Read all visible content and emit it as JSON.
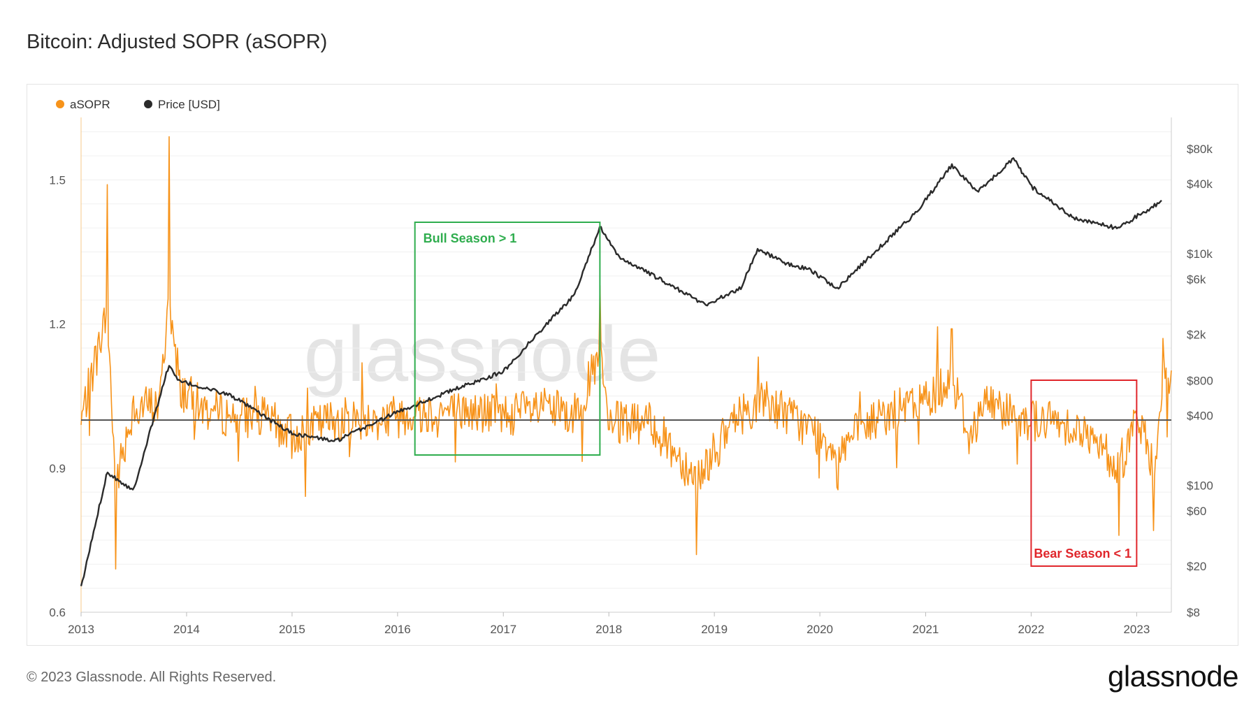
{
  "title": "Bitcoin: Adjusted SOPR (aSOPR)",
  "footer": "© 2023 Glassnode. All Rights Reserved.",
  "brand": "glassnode",
  "watermark": "glassnode",
  "colors": {
    "asopr": "#F7931A",
    "price": "#2b2b2b",
    "bull": "#2fad4e",
    "bear": "#e0262b",
    "baseline": "#555555"
  },
  "chart_data": {
    "type": "line",
    "title": "Bitcoin: Adjusted SOPR (aSOPR)",
    "legend": {
      "placement": "top-left",
      "entries": [
        "aSOPR",
        "Price [USD]"
      ]
    },
    "x_ticks": [
      "2013",
      "2014",
      "2015",
      "2016",
      "2017",
      "2018",
      "2019",
      "2020",
      "2021",
      "2022",
      "2023"
    ],
    "x_range": [
      "2013-01-01",
      "2023-05-01"
    ],
    "y_left": {
      "ticks": [
        "0.6",
        "0.9",
        "1.2",
        "1.5"
      ],
      "ylim": [
        0.6,
        1.63
      ]
    },
    "y_right": {
      "scale": "log",
      "ticks": [
        "$8",
        "$20",
        "$60",
        "$100",
        "$400",
        "$800",
        "$2k",
        "$6k",
        "$10k",
        "$40k",
        "$80k"
      ],
      "tick_values": [
        8,
        20,
        60,
        100,
        400,
        800,
        2000,
        6000,
        10000,
        40000,
        80000
      ]
    },
    "baseline": 1,
    "series": [
      {
        "name": "aSOPR",
        "axis": "left",
        "x": [
          "2013-01",
          "2013-04",
          "2013-05",
          "2013-07",
          "2013-10",
          "2013-11",
          "2013-12",
          "2014-03",
          "2014-06",
          "2014-10",
          "2015-01",
          "2015-06",
          "2015-10",
          "2016-01",
          "2016-06",
          "2017-01",
          "2017-06",
          "2017-09",
          "2017-12",
          "2018-01",
          "2018-06",
          "2018-11",
          "2019-04",
          "2019-07",
          "2019-10",
          "2020-03",
          "2020-08",
          "2021-01",
          "2021-04",
          "2021-06",
          "2021-08",
          "2021-11",
          "2022-01",
          "2022-06",
          "2022-11",
          "2023-01",
          "2023-03",
          "2023-04"
        ],
        "values": [
          0.99,
          1.49,
          0.69,
          1.05,
          1.06,
          1.59,
          1.15,
          1.04,
          1.01,
          1.0,
          0.92,
          1.0,
          0.99,
          1.02,
          1.03,
          1.02,
          1.04,
          1.01,
          1.28,
          0.98,
          0.97,
          0.72,
          1.02,
          1.08,
          1.0,
          0.86,
          1.01,
          1.08,
          1.19,
          0.93,
          1.07,
          1.03,
          0.99,
          0.97,
          0.76,
          1.01,
          0.77,
          1.17
        ]
      },
      {
        "name": "Price [USD]",
        "axis": "right",
        "x": [
          "2013-01",
          "2013-04",
          "2013-07",
          "2013-11",
          "2013-12",
          "2014-06",
          "2015-01",
          "2015-06",
          "2016-01",
          "2016-07",
          "2017-01",
          "2017-06",
          "2017-09",
          "2017-12",
          "2018-02",
          "2018-06",
          "2018-11",
          "2018-12",
          "2019-04",
          "2019-06",
          "2019-09",
          "2019-12",
          "2020-03",
          "2020-08",
          "2020-12",
          "2021-04",
          "2021-07",
          "2021-11",
          "2022-01",
          "2022-06",
          "2022-11",
          "2023-01",
          "2023-04"
        ],
        "values": [
          13,
          130,
          90,
          1100,
          800,
          600,
          280,
          240,
          430,
          650,
          960,
          2500,
          4300,
          17000,
          9500,
          6500,
          4000,
          3600,
          5000,
          11000,
          8300,
          7200,
          5000,
          11700,
          23000,
          58000,
          34000,
          66000,
          38000,
          20000,
          16500,
          21000,
          28500
        ]
      }
    ],
    "annotations": [
      {
        "label": "Bull Season > 1",
        "from": "2016-03",
        "to": "2017-12"
      },
      {
        "label": "Bear Season < 1",
        "from": "2022-01",
        "to": "2023-01"
      }
    ]
  }
}
